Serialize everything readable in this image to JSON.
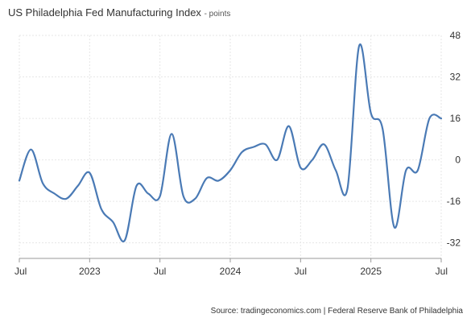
{
  "chart_data": {
    "type": "line",
    "title": "US Philadelphia Fed Manufacturing Index",
    "unit": "- points",
    "source": "Source: tradingeconomics.com | Federal Reserve Bank of Philadelphia",
    "ylim": [
      -38,
      48
    ],
    "yticks": [
      48,
      32,
      16,
      0,
      -16,
      -32
    ],
    "xlim": [
      "2022-07",
      "2025-07"
    ],
    "xticks": [
      {
        "x": "2022-07",
        "label": "Jul"
      },
      {
        "x": "2023-01",
        "label": "2023"
      },
      {
        "x": "2023-07",
        "label": "Jul"
      },
      {
        "x": "2024-01",
        "label": "2024"
      },
      {
        "x": "2024-07",
        "label": "Jul"
      },
      {
        "x": "2025-01",
        "label": "2025"
      },
      {
        "x": "2025-07",
        "label": "Jul"
      }
    ],
    "grid": true,
    "series": [
      {
        "color": "#4a7ab5",
        "x": [
          "2022-07",
          "2022-08",
          "2022-09",
          "2022-10",
          "2022-11",
          "2022-12",
          "2023-01",
          "2023-02",
          "2023-03",
          "2023-04",
          "2023-05",
          "2023-06",
          "2023-07",
          "2023-08",
          "2023-09",
          "2023-10",
          "2023-11",
          "2023-12",
          "2024-01",
          "2024-02",
          "2024-03",
          "2024-04",
          "2024-05",
          "2024-06",
          "2024-07",
          "2024-08",
          "2024-09",
          "2024-10",
          "2024-11",
          "2024-12",
          "2025-01",
          "2025-02",
          "2025-03",
          "2025-04",
          "2025-05",
          "2025-06",
          "2025-07"
        ],
        "values": [
          -8,
          4,
          -9,
          -13,
          -15,
          -10,
          -5,
          -19,
          -24,
          -31,
          -10,
          -13,
          -14,
          10,
          -14,
          -15,
          -7,
          -8,
          -4,
          3,
          5,
          6,
          0,
          13,
          -3,
          0,
          6,
          -4,
          -11,
          44,
          18,
          12,
          -26,
          -4,
          -4,
          16,
          16
        ]
      }
    ]
  }
}
